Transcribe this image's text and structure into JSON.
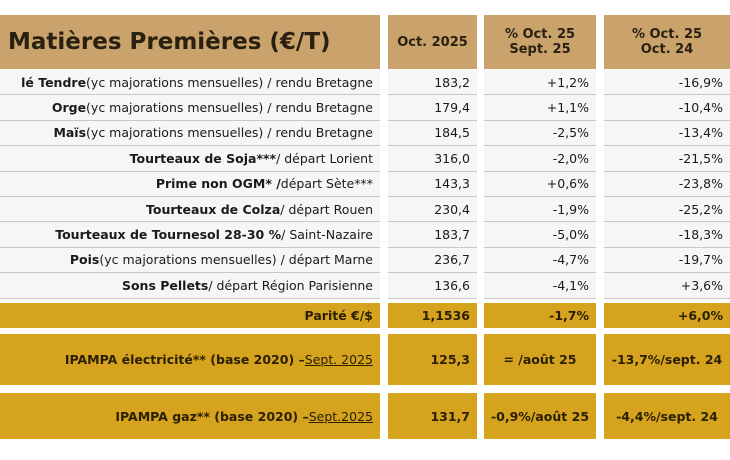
{
  "header": {
    "title": "Matières Premières (€/T)",
    "col1": [
      "Oct. 2025"
    ],
    "col2": [
      "% Oct. 25",
      "Sept. 25"
    ],
    "col3": [
      "% Oct. 25",
      "Oct. 24"
    ]
  },
  "rows": [
    {
      "label": [
        "lé Tendre",
        " (yc majorations mensuelles) / rendu Bretagne"
      ],
      "cells": [
        "183,2",
        "+1,2%",
        "-16,9%"
      ]
    },
    {
      "label": [
        "Orge",
        " (yc majorations mensuelles) / rendu Bretagne"
      ],
      "cells": [
        "179,4",
        "+1,1%",
        "-10,4%"
      ]
    },
    {
      "label": [
        "Maïs",
        " (yc majorations mensuelles) / rendu Bretagne"
      ],
      "cells": [
        "184,5",
        "-2,5%",
        "-13,4%"
      ]
    },
    {
      "label": [
        "Tourteaux de Soja***",
        " / départ Lorient"
      ],
      "cells": [
        "316,0",
        "-2,0%",
        "-21,5%"
      ]
    },
    {
      "label": [
        "Prime non OGM* /",
        " départ Sète***"
      ],
      "cells": [
        "143,3",
        "+0,6%",
        "-23,8%"
      ]
    },
    {
      "label": [
        "Tourteaux de Colza",
        " / départ Rouen"
      ],
      "cells": [
        "230,4",
        "-1,9%",
        "-25,2%"
      ]
    },
    {
      "label": [
        "Tourteaux de Tournesol 28-30 %",
        " / Saint-Nazaire"
      ],
      "cells": [
        "183,7",
        "-5,0%",
        "-18,3%"
      ]
    },
    {
      "label": [
        "Pois",
        " (yc majorations mensuelles) / départ Marne"
      ],
      "cells": [
        "236,7",
        "-4,7%",
        "-19,7%"
      ]
    },
    {
      "label": [
        "Sons Pellets",
        " / départ Région Parisienne"
      ],
      "cells": [
        "136,6",
        "-4,1%",
        "+3,6%"
      ]
    }
  ],
  "footer_rows": [
    {
      "label": [
        "Parité €/$"
      ],
      "cells": [
        "1,1536",
        "-1,7%",
        "+6,0%"
      ]
    },
    {
      "label": [
        "IPAMPA électricité** (base 2020) – ",
        "Sept. 2025"
      ],
      "cells": [
        "125,3",
        "= /août 25",
        "-13,7%/sept. 24"
      ]
    },
    {
      "label": [
        "IPAMPA gaz** (base 2020) – ",
        "Sept.2025"
      ],
      "cells": [
        "131,7",
        "-0,9%/août 25",
        "-4,4%/sept. 24"
      ]
    }
  ]
}
